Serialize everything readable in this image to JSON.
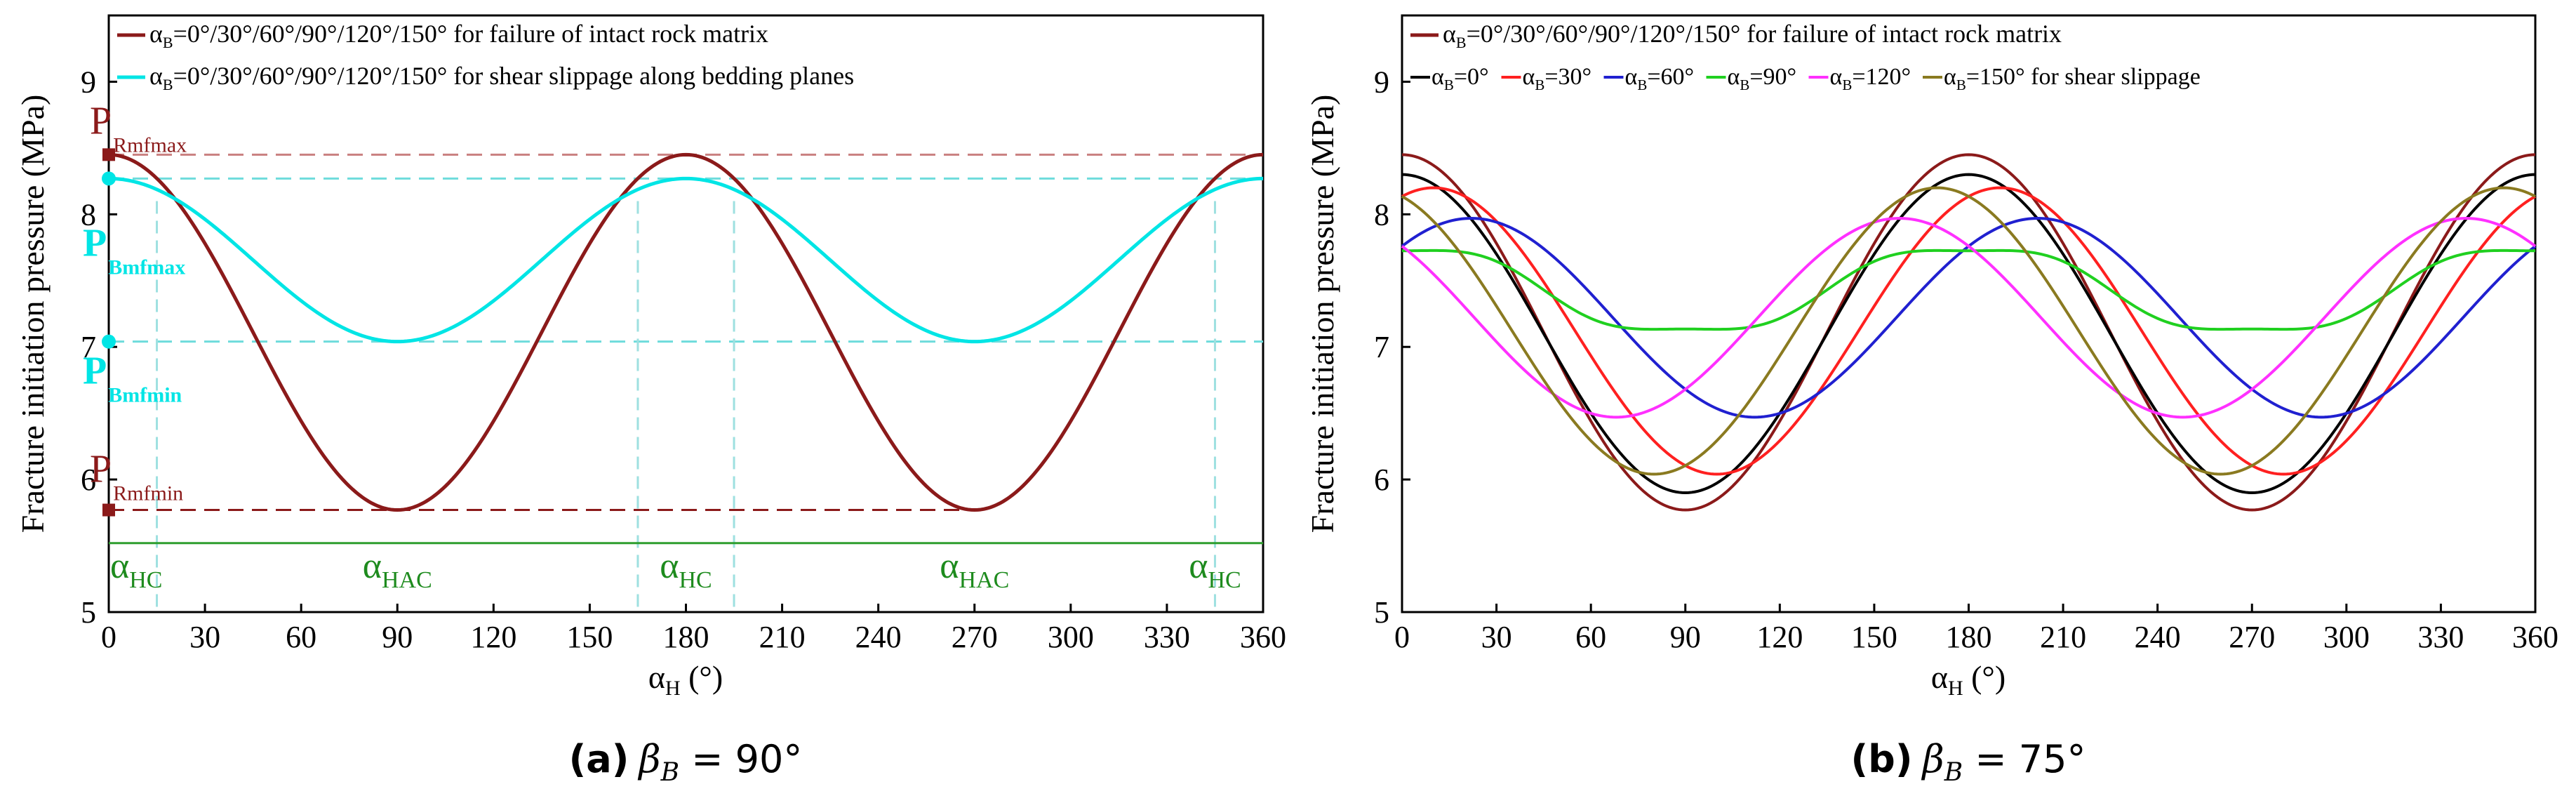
{
  "colors": {
    "dark_red": "#8B1A1A",
    "cyan": "#00E5E5",
    "green_text": "#1E8B1E",
    "green_line": "#2E9E2E",
    "black": "#000000",
    "red": "#FF2020",
    "blue": "#2020D0",
    "green": "#20D020",
    "magenta": "#FF30FF",
    "olive": "#8A7A20"
  },
  "captions": {
    "a": {
      "label": "(a)",
      "text": "β",
      "sub": "B",
      "rest": " = 90°"
    },
    "b": {
      "label": "(b)",
      "text": "β",
      "sub": "B",
      "rest": " = 75°"
    }
  },
  "chart_data": [
    {
      "id": "a",
      "type": "line",
      "ylabel": "Fracture initiation pressure (MPa)",
      "xlabel_main": "α",
      "xlabel_sub": "H",
      "xlabel_unit": " (°)",
      "xlim": [
        0,
        360
      ],
      "ylim": [
        5,
        9.5
      ],
      "xticks": [
        0,
        30,
        60,
        90,
        120,
        150,
        180,
        210,
        240,
        270,
        300,
        330,
        360
      ],
      "yticks": [
        5,
        6,
        7,
        8,
        9
      ],
      "series": [
        {
          "name": "αB=0°/30°/60°/90°/120°/150° for failure of intact rock matrix",
          "color": "#8B1A1A",
          "mean": 7.11,
          "amp": 1.34,
          "phase": 0,
          "shape": "cos2"
        },
        {
          "name": "αB=0°/30°/60°/90°/120°/150° for shear slippage along bedding planes",
          "color": "#00E5E5",
          "mean": 7.655,
          "amp": 0.615,
          "phase": 0,
          "shape": "cos2"
        }
      ],
      "legend": [
        {
          "color": "#8B1A1A",
          "greek": "α",
          "sub": "B",
          "text": "=0°/30°/60°/90°/120°/150° for failure of intact rock matrix"
        },
        {
          "color": "#00E5E5",
          "greek": "α",
          "sub": "B",
          "text": "=0°/30°/60°/90°/120°/150° for shear slippage along bedding planes"
        }
      ],
      "annotations": {
        "P_Rmfmax": {
          "main": "P",
          "sub": "Rmfmax",
          "value": 8.45
        },
        "P_Bmfmax": {
          "main": "P",
          "sub": "Bmfmax",
          "value": 8.27
        },
        "P_Bmfmin": {
          "main": "P",
          "sub": "Bmfmin",
          "value": 7.04
        },
        "P_Rmfmin": {
          "main": "P",
          "sub": "Rmfmin",
          "value": 5.77
        },
        "green_line_y": 5.52,
        "alpha_labels": [
          {
            "main": "α",
            "sub": "HC",
            "x": 0
          },
          {
            "main": "α",
            "sub": "HAC",
            "x": 90
          },
          {
            "main": "α",
            "sub": "HC",
            "x": 180
          },
          {
            "main": "α",
            "sub": "HAC",
            "x": 270
          },
          {
            "main": "α",
            "sub": "HC",
            "x": 345
          }
        ],
        "vlines": [
          15,
          165,
          195,
          345
        ]
      }
    },
    {
      "id": "b",
      "type": "line",
      "ylabel": "Fracture initiation pressure (MPa)",
      "xlabel_main": "α",
      "xlabel_sub": "H",
      "xlabel_unit": " (°)",
      "xlim": [
        0,
        360
      ],
      "ylim": [
        5,
        9.5
      ],
      "xticks": [
        0,
        30,
        60,
        90,
        120,
        150,
        180,
        210,
        240,
        270,
        300,
        330,
        360
      ],
      "yticks": [
        5,
        6,
        7,
        8,
        9
      ],
      "series": [
        {
          "name": "αB=0°/30°/60°/90°/120°/150° for failure of intact rock matrix",
          "color": "#8B1A1A",
          "mean": 7.11,
          "amp": 1.34,
          "phase": 0,
          "shape": "cos2"
        },
        {
          "name": "αB=0°",
          "color": "#000000",
          "mean": 7.1,
          "amp": 1.2,
          "phase": 0,
          "shape": "cos2"
        },
        {
          "name": "αB=30°",
          "color": "#FF2020",
          "mean": 7.12,
          "amp": 1.08,
          "phase": 10,
          "shape": "cos2"
        },
        {
          "name": "αB=60°",
          "color": "#2020D0",
          "mean": 7.22,
          "amp": 0.75,
          "phase": 22,
          "shape": "cos2"
        },
        {
          "name": "αB=90°",
          "color": "#20D020",
          "mean": 7.43,
          "amp": 0.34,
          "phase": 0,
          "shape": "flat90"
        },
        {
          "name": "αB=120°",
          "color": "#FF30FF",
          "mean": 7.22,
          "amp": 0.75,
          "phase": -22,
          "shape": "cos2"
        },
        {
          "name": "αB=150°",
          "color": "#8A7A20",
          "mean": 7.12,
          "amp": 1.08,
          "phase": -10,
          "shape": "cos2"
        }
      ],
      "legend": [
        {
          "color": "#8B1A1A",
          "greek": "α",
          "sub": "B",
          "text": "=0°/30°/60°/90°/120°/150° for failure of intact rock matrix"
        }
      ],
      "legend_row2": [
        {
          "color": "#000000",
          "greek": "α",
          "sub": "B",
          "text": "=0°"
        },
        {
          "color": "#FF2020",
          "greek": "α",
          "sub": "B",
          "text": "=30°"
        },
        {
          "color": "#2020D0",
          "greek": "α",
          "sub": "B",
          "text": "=60°"
        },
        {
          "color": "#20D020",
          "greek": "α",
          "sub": "B",
          "text": "=90°"
        },
        {
          "color": "#FF30FF",
          "greek": "α",
          "sub": "B",
          "text": "=120°"
        },
        {
          "color": "#8A7A20",
          "greek": "α",
          "sub": "B",
          "text": "=150° for shear slippage"
        }
      ]
    }
  ]
}
